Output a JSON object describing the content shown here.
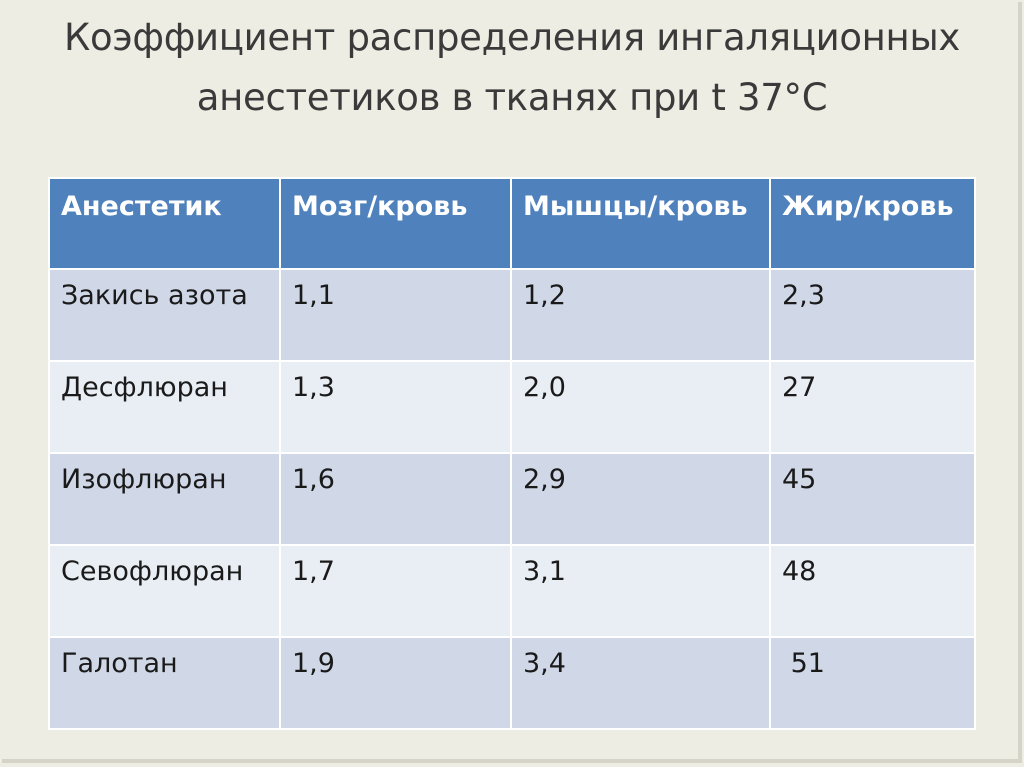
{
  "title": {
    "line1": "Коэффициент распределения ингаляционных",
    "line2": "анестетиков в тканях при t 37°С"
  },
  "table": {
    "headers": [
      "Анестетик",
      "Мозг/кровь",
      "Мышцы/кровь",
      "Жир/кровь"
    ],
    "rows": [
      [
        "Закись азота",
        "1,1",
        "1,2",
        "2,3"
      ],
      [
        "Десфлюран",
        "1,3",
        "2,0",
        "27"
      ],
      [
        "Изофлюран",
        "1,6",
        "2,9",
        "45"
      ],
      [
        "Севофлюран",
        "1,7",
        "3,1",
        "48"
      ],
      [
        "Галотан",
        "1,9",
        "3,4",
        " 51"
      ]
    ]
  },
  "colors": {
    "header_bg": "#4f81bd",
    "row_odd_bg": "#d0d8e8",
    "row_even_bg": "#e9edf4",
    "slide_bg": "#eeede3"
  }
}
